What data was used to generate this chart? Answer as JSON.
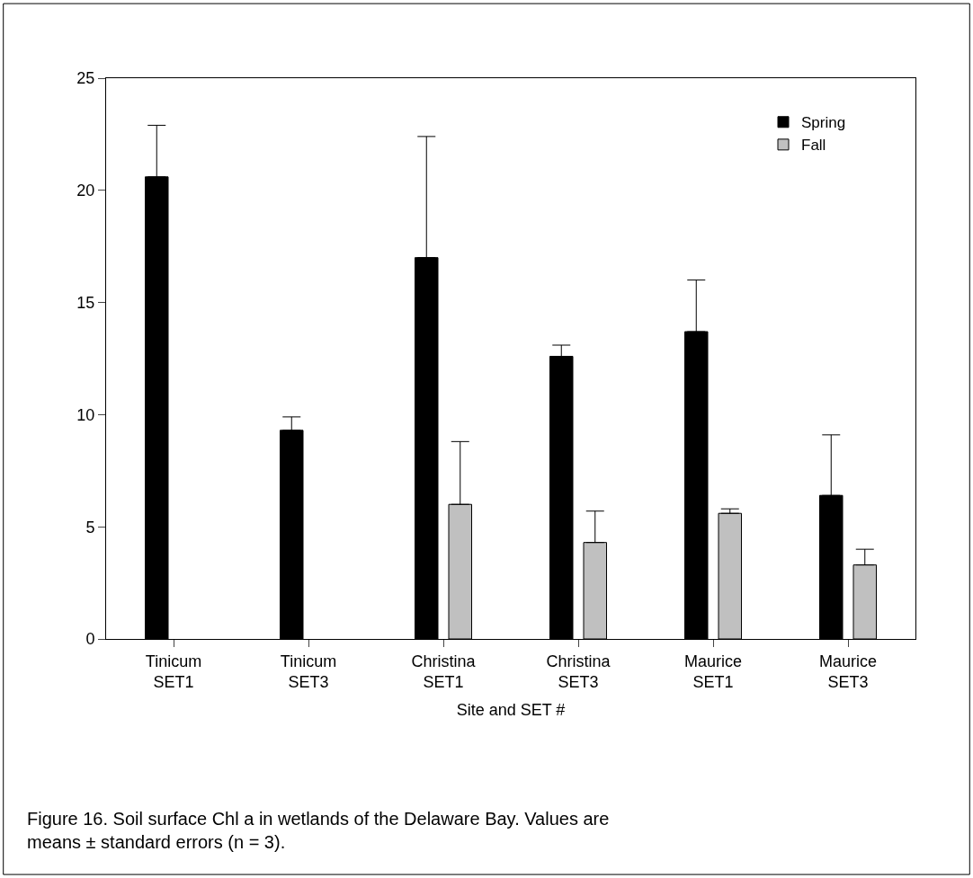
{
  "chart_data": {
    "type": "bar",
    "xlabel": "Site and SET #",
    "categories": [
      "Tinicum\nSET1",
      "Tinicum\nSET3",
      "Christina\nSET1",
      "Christina\nSET3",
      "Maurice\nSET1",
      "Maurice\nSET3"
    ],
    "series": [
      {
        "name": "Spring",
        "color": "#000000",
        "values": [
          20.6,
          9.3,
          17.0,
          12.6,
          13.7,
          6.4
        ],
        "errors": [
          [
            20.6,
            22.9
          ],
          [
            9.3,
            9.9
          ],
          [
            17.0,
            22.4
          ],
          [
            12.6,
            13.1
          ],
          [
            13.7,
            16.0
          ],
          [
            6.4,
            9.1
          ]
        ]
      },
      {
        "name": "Fall",
        "color": "#c0c0c0",
        "values": [
          null,
          null,
          6.0,
          4.3,
          5.6,
          3.3
        ],
        "errors": [
          null,
          null,
          [
            6.0,
            8.8
          ],
          [
            4.3,
            5.7
          ],
          [
            5.6,
            5.8
          ],
          [
            3.3,
            4.0
          ]
        ]
      }
    ],
    "ylim": [
      0,
      25
    ],
    "yticks": [
      0,
      5,
      10,
      15,
      20,
      25
    ],
    "legend": "top right",
    "annotations": [
      "Figure 16. Soil surface Chl a in wetlands of the Delaware Bay. Values are means ± standard errors (n = 3)."
    ]
  }
}
